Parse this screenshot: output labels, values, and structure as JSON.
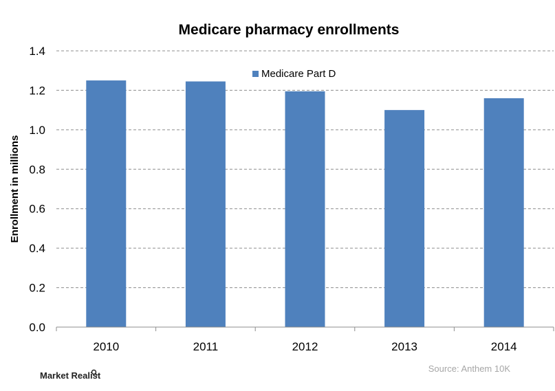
{
  "chart_data": {
    "type": "bar",
    "title": "Medicare pharmacy enrollments",
    "xlabel": "",
    "ylabel": "Enrollment in millions",
    "categories": [
      "2010",
      "2011",
      "2012",
      "2013",
      "2014"
    ],
    "series": [
      {
        "name": "Medicare Part D",
        "values": [
          1.25,
          1.245,
          1.195,
          1.1,
          1.16
        ]
      }
    ],
    "ylim": [
      0,
      1.4
    ],
    "yticks": [
      "0.0",
      "0.2",
      "0.4",
      "0.6",
      "0.8",
      "1.0",
      "1.2",
      "1.4"
    ],
    "grid": "horizontal dashed",
    "legend_position": "top-center",
    "bar_color": "#4f81bd"
  },
  "source": "Source: Anthem 10K",
  "brand": "Market Realist",
  "brand_icon": "magnifier-icon"
}
